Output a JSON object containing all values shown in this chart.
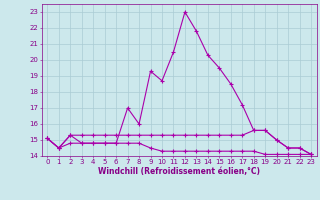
{
  "title": "",
  "xlabel": "Windchill (Refroidissement éolien,°C)",
  "ylabel": "",
  "x": [
    0,
    1,
    2,
    3,
    4,
    5,
    6,
    7,
    8,
    9,
    10,
    11,
    12,
    13,
    14,
    15,
    16,
    17,
    18,
    19,
    20,
    21,
    22,
    23
  ],
  "line1": [
    15.1,
    14.5,
    15.3,
    14.8,
    14.8,
    14.8,
    14.8,
    17.0,
    16.0,
    19.3,
    18.7,
    20.5,
    23.0,
    21.8,
    20.3,
    19.5,
    18.5,
    17.2,
    15.6,
    15.6,
    15.0,
    14.5,
    14.5,
    14.1
  ],
  "line2": [
    15.1,
    14.5,
    15.3,
    15.3,
    15.3,
    15.3,
    15.3,
    15.3,
    15.3,
    15.3,
    15.3,
    15.3,
    15.3,
    15.3,
    15.3,
    15.3,
    15.3,
    15.3,
    15.6,
    15.6,
    15.0,
    14.5,
    14.5,
    14.1
  ],
  "line3": [
    15.1,
    14.5,
    14.8,
    14.8,
    14.8,
    14.8,
    14.8,
    14.8,
    14.8,
    14.5,
    14.3,
    14.3,
    14.3,
    14.3,
    14.3,
    14.3,
    14.3,
    14.3,
    14.3,
    14.1,
    14.1,
    14.1,
    14.1,
    14.1
  ],
  "ylim": [
    14.0,
    23.5
  ],
  "xlim": [
    -0.5,
    23.5
  ],
  "bg_color": "#cce8ec",
  "line_color": "#aa00aa",
  "grid_color": "#aaccd4",
  "xlabel_color": "#880088",
  "tick_color": "#880088",
  "marker": "+",
  "linewidth": 0.8,
  "markersize": 3.5,
  "markeredgewidth": 0.8,
  "yticks": [
    14,
    15,
    16,
    17,
    18,
    19,
    20,
    21,
    22,
    23
  ],
  "xticks": [
    0,
    1,
    2,
    3,
    4,
    5,
    6,
    7,
    8,
    9,
    10,
    11,
    12,
    13,
    14,
    15,
    16,
    17,
    18,
    19,
    20,
    21,
    22,
    23
  ],
  "tick_fontsize": 5.0,
  "xlabel_fontsize": 5.5
}
